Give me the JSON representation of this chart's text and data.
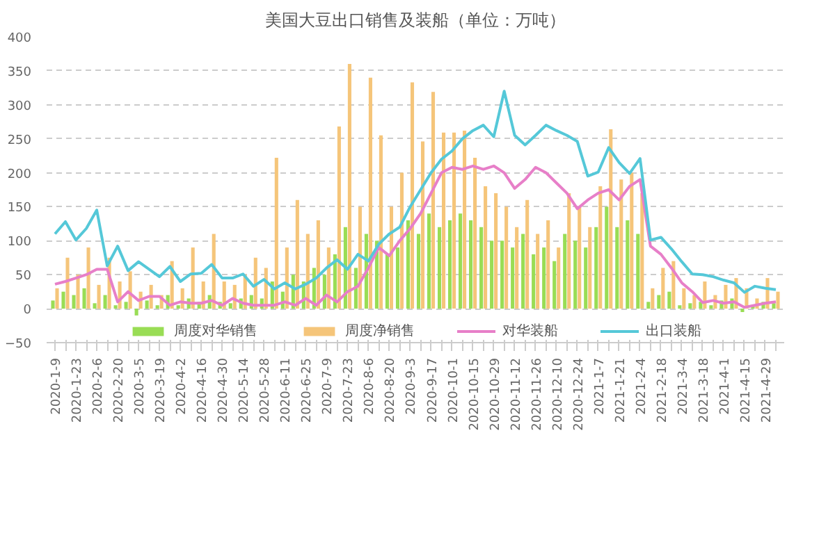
{
  "chart_data": {
    "type": "bar",
    "title": "美国大豆出口销售及装船（单位：万吨）",
    "categories": [
      "2020-1-9",
      null,
      "2020-1-23",
      null,
      "2020-2-6",
      null,
      "2020-2-20",
      null,
      "2020-3-5",
      null,
      "2020-3-19",
      null,
      "2020-4-2",
      null,
      "2020-4-16",
      null,
      "2020-4-30",
      null,
      "2020-5-14",
      null,
      "2020-5-28",
      null,
      "2020-6-11",
      null,
      "2020-6-25",
      null,
      "2020-7-9",
      null,
      "2020-7-23",
      null,
      "2020-8-6",
      null,
      "2020-8-20",
      null,
      "2020-9-3",
      null,
      "2020-9-17",
      null,
      "2020-10-1",
      null,
      "2020-10-15",
      null,
      "2020-10-29",
      null,
      "2020-11-12",
      null,
      "2020-11-26",
      null,
      "2020-12-10",
      null,
      "2020-12-24",
      null,
      "2021-1-7",
      null,
      "2021-1-21",
      null,
      "2021-2-4",
      null,
      "2021-2-18",
      null,
      "2021-3-4",
      null,
      "2021-3-18",
      null,
      "2021-4-1",
      null,
      "2021-4-15",
      null,
      "2021-4-29",
      null
    ],
    "series": [
      {
        "name": "周度对华销售",
        "color": "#99dd55",
        "values": [
          12,
          25,
          20,
          30,
          8,
          20,
          5,
          10,
          -10,
          12,
          5,
          20,
          5,
          15,
          10,
          20,
          10,
          8,
          15,
          20,
          15,
          40,
          25,
          50,
          40,
          60,
          50,
          80,
          120,
          60,
          110,
          100,
          80,
          90,
          130,
          110,
          140,
          120,
          130,
          140,
          130,
          120,
          100,
          100,
          90,
          110,
          80,
          90,
          70,
          110,
          100,
          90,
          120,
          150,
          120,
          130,
          110,
          10,
          20,
          25,
          5,
          8,
          10,
          5,
          12,
          15,
          -5,
          5,
          10,
          8
        ]
      },
      {
        "name": "周度净销售",
        "color": "#f5c57a",
        "values": [
          30,
          75,
          50,
          90,
          35,
          75,
          40,
          55,
          25,
          35,
          20,
          70,
          30,
          90,
          40,
          110,
          40,
          35,
          50,
          75,
          60,
          222,
          90,
          160,
          110,
          130,
          90,
          268,
          360,
          150,
          340,
          255,
          150,
          200,
          333,
          246,
          319,
          259,
          259,
          262,
          222,
          180,
          170,
          150,
          120,
          160,
          110,
          130,
          90,
          170,
          150,
          120,
          180,
          264,
          190,
          200,
          170,
          30,
          60,
          70,
          30,
          20,
          40,
          20,
          35,
          45,
          30,
          15,
          45,
          25
        ]
      },
      {
        "name": "对华装船",
        "type": "line",
        "color": "#e77fc8",
        "values": [
          36,
          40,
          45,
          50,
          58,
          58,
          10,
          25,
          12,
          18,
          18,
          5,
          10,
          8,
          8,
          12,
          5,
          15,
          8,
          5,
          5,
          5,
          10,
          5,
          15,
          5,
          20,
          10,
          25,
          33,
          60,
          90,
          78,
          100,
          118,
          140,
          170,
          200,
          208,
          205,
          210,
          205,
          210,
          200,
          177,
          190,
          208,
          200,
          185,
          170,
          147,
          160,
          170,
          175,
          160,
          180,
          190,
          92,
          80,
          60,
          38,
          25,
          9,
          12,
          8,
          10,
          2,
          5,
          8,
          10
        ]
      },
      {
        "name": "出口装船",
        "type": "line",
        "color": "#55c8d8",
        "values": [
          110,
          128,
          101,
          118,
          145,
          63,
          92,
          56,
          69,
          58,
          47,
          62,
          40,
          51,
          52,
          65,
          45,
          45,
          51,
          33,
          43,
          29,
          38,
          29,
          36,
          45,
          60,
          72,
          58,
          80,
          70,
          95,
          110,
          120,
          150,
          175,
          200,
          220,
          232,
          250,
          262,
          270,
          253,
          320,
          255,
          241,
          255,
          270,
          262,
          255,
          246,
          195,
          201,
          237,
          215,
          199,
          221,
          101,
          105,
          88,
          69,
          51,
          50,
          47,
          42,
          38,
          24,
          33,
          30,
          28
        ]
      }
    ],
    "ylim": [
      -50,
      400
    ],
    "yticks": [
      -50,
      0,
      50,
      100,
      150,
      200,
      250,
      300,
      350,
      400
    ],
    "grid": "y",
    "legend": "bottom"
  }
}
